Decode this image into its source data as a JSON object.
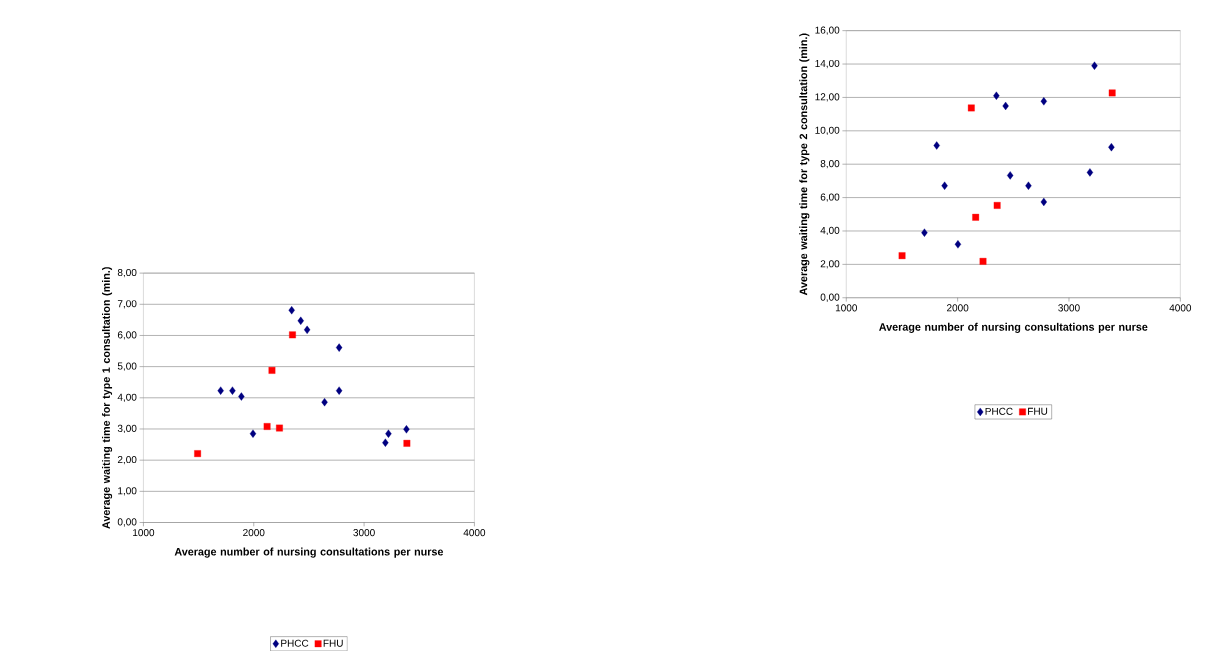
{
  "chart_data": [
    {
      "type": "scatter",
      "xlabel": "Average number of nursing consultations per nurse",
      "ylabel": "Average waiting time for type 1 consultation (min.)",
      "xlim": [
        1000,
        4000
      ],
      "ylim": [
        0,
        8
      ],
      "xticks": [
        1000,
        2000,
        3000,
        4000
      ],
      "yticks": [
        {
          "value": 0,
          "label": "0,00"
        },
        {
          "value": 1,
          "label": "1,00"
        },
        {
          "value": 2,
          "label": "2,00"
        },
        {
          "value": 3,
          "label": "3,00"
        },
        {
          "value": 4,
          "label": "4,00"
        },
        {
          "value": 5,
          "label": "5,00"
        },
        {
          "value": 6,
          "label": "6,00"
        },
        {
          "value": 7,
          "label": "7,00"
        },
        {
          "value": 8,
          "label": "8,00"
        }
      ],
      "grid": "y",
      "legend": "bottom",
      "series": [
        {
          "name": "PHCC",
          "color": "#000080",
          "marker": "diamond",
          "x": [
            1700,
            1807,
            1888,
            1993,
            2344,
            2426,
            2484,
            2642,
            2774,
            2774,
            3193,
            3221,
            3384
          ],
          "values": [
            4.23,
            4.23,
            4.04,
            2.85,
            6.81,
            6.47,
            6.18,
            3.86,
            5.61,
            4.23,
            2.56,
            2.85,
            2.99
          ]
        },
        {
          "name": "FHU",
          "color": "#ff0000",
          "marker": "square",
          "x": [
            1491,
            2121,
            2165,
            2233,
            2351,
            3388
          ],
          "values": [
            2.21,
            3.08,
            4.88,
            3.03,
            6.02,
            2.54
          ]
        }
      ]
    },
    {
      "type": "scatter",
      "xlabel": "Average number of nursing consultations per nurse",
      "ylabel": "Average waiting time for type 2 consultation (min.)",
      "xlim": [
        1000,
        4000
      ],
      "ylim": [
        0,
        16
      ],
      "xticks": [
        1000,
        2000,
        3000,
        4000
      ],
      "yticks": [
        {
          "value": 0,
          "label": "0,00"
        },
        {
          "value": 2,
          "label": "2,00"
        },
        {
          "value": 4,
          "label": "4,00"
        },
        {
          "value": 6,
          "label": "6,00"
        },
        {
          "value": 8,
          "label": "8,00"
        },
        {
          "value": 10,
          "label": "10,00"
        },
        {
          "value": 12,
          "label": "12,00"
        },
        {
          "value": 14,
          "label": "14,00"
        },
        {
          "value": 16,
          "label": "16,00"
        }
      ],
      "grid": "y",
      "legend": "bottom",
      "series": [
        {
          "name": "PHCC",
          "color": "#000080",
          "marker": "diamond",
          "x": [
            1702,
            1812,
            1883,
            2003,
            2348,
            2431,
            2472,
            2636,
            2774,
            2774,
            3188,
            3229,
            3381
          ],
          "values": [
            3.9,
            9.12,
            6.71,
            3.2,
            12.1,
            11.49,
            7.33,
            6.71,
            11.77,
            5.74,
            7.51,
            13.9,
            9.02
          ]
        },
        {
          "name": "FHU",
          "color": "#ff0000",
          "marker": "square",
          "x": [
            1501,
            2123,
            2162,
            2228,
            2355,
            3388
          ],
          "values": [
            2.52,
            11.37,
            4.82,
            2.18,
            5.53,
            12.27
          ]
        }
      ]
    }
  ]
}
